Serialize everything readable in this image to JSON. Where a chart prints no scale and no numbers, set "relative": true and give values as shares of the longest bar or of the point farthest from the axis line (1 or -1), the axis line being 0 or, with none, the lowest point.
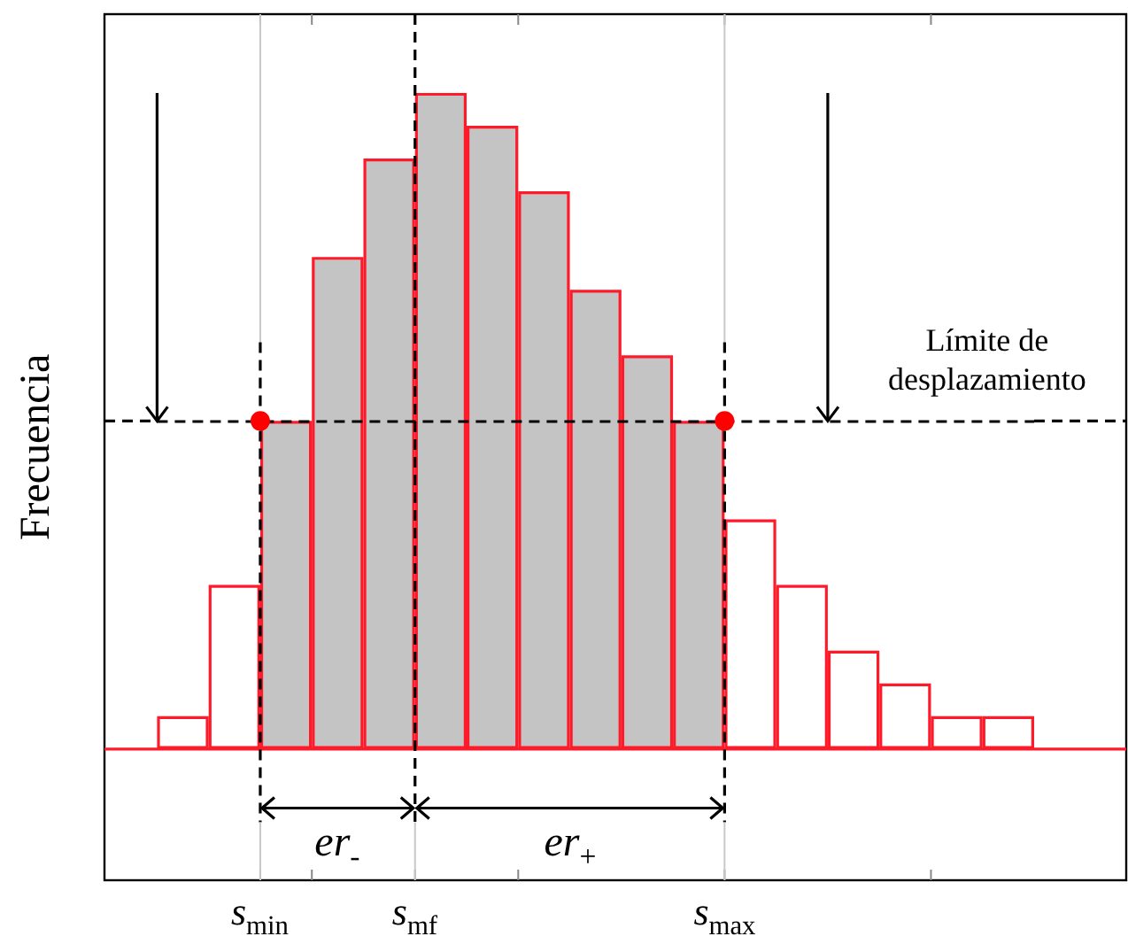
{
  "chart_data": {
    "type": "bar",
    "relative": true,
    "ylabel": "Frecuencia",
    "categories": [
      null,
      null,
      null,
      null,
      null,
      null,
      null,
      null,
      null,
      null,
      null,
      null,
      null,
      null,
      null,
      null,
      null
    ],
    "series": [
      {
        "color": "#ff1a2a",
        "colors": [
          "#ffffff",
          "#ffffff",
          "#c4c4c4",
          "#c4c4c4",
          "#c4c4c4",
          "#c4c4c4",
          "#c4c4c4",
          "#c4c4c4",
          "#c4c4c4",
          "#c4c4c4",
          "#c4c4c4",
          "#ffffff",
          "#ffffff",
          "#ffffff",
          "#ffffff",
          "#ffffff",
          "#ffffff"
        ],
        "values": [
          0.05,
          0.25,
          0.5,
          0.75,
          0.9,
          1,
          0.95,
          0.85,
          0.7,
          0.6,
          0.5,
          0.35,
          0.25,
          0.15,
          0.1,
          0.05,
          0.05
        ]
      }
    ],
    "ref_lines": [
      {
        "axis": "y",
        "value": 0.5,
        "color": "#000000",
        "line_style": "dashed"
      }
    ],
    "annotations": [
      "s$_{min}$",
      "s$_{mf}$",
      "s$_{max}$",
      "er$_{-}$",
      "er$_{+}$",
      "Límite de\ndesplazamiento"
    ]
  }
}
